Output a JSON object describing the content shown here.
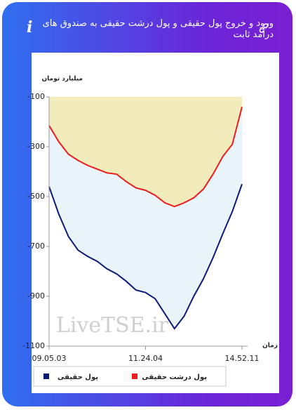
{
  "chart_data": {
    "type": "area-line",
    "title": "ورود و خروج پول حقیقی و پول درشت حقیقی به صندوق های درآمد ثابت",
    "y_label": "میلیارد تومان",
    "x_label": "زمان",
    "watermark": "LiveTSE.ir",
    "categories": [
      "09.05.03",
      null,
      null,
      null,
      null,
      null,
      null,
      null,
      null,
      null,
      "11.24.04",
      null,
      null,
      null,
      null,
      null,
      null,
      null,
      null,
      null,
      "14.52.11"
    ],
    "series": [
      {
        "name": "پول درشت حقیقی",
        "color": "#ee1c1c",
        "fill": "#f2ebbb",
        "values": [
          -215,
          -280,
          -330,
          -355,
          -375,
          -390,
          -405,
          -410,
          -440,
          -465,
          -475,
          -495,
          -525,
          -540,
          -525,
          -505,
          -470,
          -410,
          -340,
          -290,
          -140
        ]
      },
      {
        "name": "پول حقیقی",
        "color": "#0b1a7a",
        "fill": "#e8f3fa",
        "values": [
          -460,
          -570,
          -660,
          -715,
          -740,
          -760,
          -790,
          -810,
          -840,
          -875,
          -885,
          -910,
          -970,
          -1030,
          -980,
          -900,
          -830,
          -745,
          -650,
          -560,
          -450
        ]
      }
    ],
    "ylim": [
      -1100,
      -100
    ],
    "yticks": [
      -100,
      -300,
      -500,
      -700,
      -900,
      -1100
    ],
    "grid": false
  }
}
